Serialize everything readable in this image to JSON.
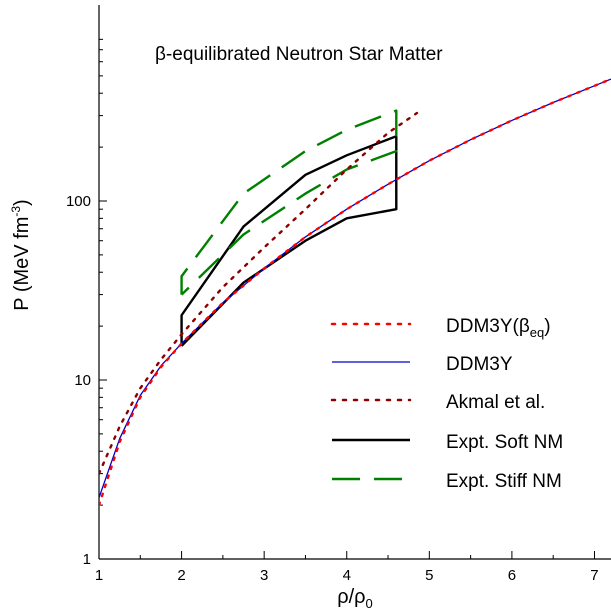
{
  "chart_data": {
    "type": "line",
    "title": "β-equilibrated Neutron Star Matter",
    "xlabel": {
      "main": "ρ/ρ",
      "sub": "0"
    },
    "ylabel": {
      "main": "P (MeV fm",
      "sup": "-3",
      "end": ")"
    },
    "xlim": [
      1,
      7.2
    ],
    "ylim": [
      1,
      900
    ],
    "y_scale": "log",
    "grid": false,
    "legend_placement": "bottom-right",
    "x_ticks": [
      1,
      2,
      3,
      4,
      5,
      6,
      7
    ],
    "x_tick_labels": [
      "1",
      "2",
      "3",
      "4",
      "5",
      "6",
      "7"
    ],
    "y_ticks": [
      1,
      10,
      100
    ],
    "y_tick_labels": [
      "1",
      "10",
      "100"
    ],
    "series": [
      {
        "name": "DDM3Y(βeq)",
        "legend_label": {
          "main": "DDM3Y(β",
          "sub": "eq",
          "end": ")"
        },
        "color": "#ff0000",
        "style": "dotted",
        "x": [
          1,
          1.25,
          1.5,
          1.75,
          2,
          2.5,
          3,
          3.5,
          4,
          4.5,
          5,
          5.5,
          6,
          6.5,
          7,
          7.2
        ],
        "y": [
          2.0,
          4.5,
          8.0,
          11.8,
          16,
          27,
          42,
          63,
          90,
          124,
          168,
          220,
          282,
          355,
          440,
          480
        ]
      },
      {
        "name": "DDM3Y",
        "color": "#0000cc",
        "style": "solid",
        "x": [
          1,
          1.25,
          1.5,
          1.75,
          2,
          2.5,
          3,
          3.5,
          4,
          4.5,
          5,
          5.5,
          6,
          6.5,
          7,
          7.2
        ],
        "y": [
          2.2,
          4.7,
          8.2,
          12.0,
          16,
          27,
          42,
          63,
          90,
          124,
          168,
          220,
          282,
          355,
          440,
          480
        ]
      },
      {
        "name": "Akmal et al.",
        "color": "#8b0000",
        "style": "dotted",
        "x": [
          1,
          1.25,
          1.5,
          1.75,
          2,
          2.5,
          3,
          3.5,
          4,
          4.5,
          4.85
        ],
        "y": [
          3.0,
          5.5,
          9.0,
          13.0,
          18,
          33,
          55,
          90,
          150,
          240,
          310
        ]
      },
      {
        "name": "Expt. Soft NM",
        "color": "#000000",
        "style": "solid",
        "x": [
          2,
          2,
          2.75,
          3.5,
          4,
          4.6,
          4.6,
          4,
          3.5,
          2.75,
          2
        ],
        "y": [
          15.5,
          23,
          72,
          140,
          180,
          230,
          90,
          80,
          60,
          35,
          15.5
        ]
      },
      {
        "name": "Expt. Stiff NM",
        "color": "#008000",
        "style": "dashed",
        "x": [
          2,
          2,
          2.75,
          3.5,
          4,
          4.6,
          4.6,
          4,
          3.5,
          2.75,
          2
        ],
        "y": [
          30,
          38,
          110,
          190,
          250,
          320,
          190,
          150,
          110,
          65,
          30
        ]
      }
    ]
  }
}
